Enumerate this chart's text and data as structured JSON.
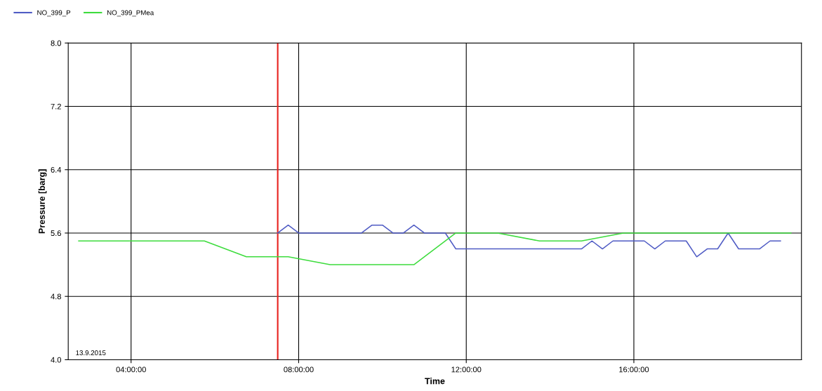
{
  "chart_data": {
    "type": "line",
    "xlabel": "Time",
    "ylabel": "Pressure [barg]",
    "xlim": [
      2.5,
      20
    ],
    "xticks": [
      {
        "value": 4,
        "label": "04:00:00"
      },
      {
        "value": 8,
        "label": "08:00:00"
      },
      {
        "value": 12,
        "label": "12:00:00"
      },
      {
        "value": 16,
        "label": "16:00:00"
      }
    ],
    "ylim": [
      4.0,
      8.0
    ],
    "yticks": [
      {
        "value": 4.0,
        "label": "4.0"
      },
      {
        "value": 4.8,
        "label": "4.8"
      },
      {
        "value": 5.6,
        "label": "5.6"
      },
      {
        "value": 6.4,
        "label": "6.4"
      },
      {
        "value": 7.2,
        "label": "7.2"
      },
      {
        "value": 8.0,
        "label": "8.0"
      }
    ],
    "grid": true,
    "legend": "top left",
    "marker": "none",
    "line_style": "solid",
    "ref_lines": [
      {
        "axis": "x",
        "value": 7.5,
        "label": null,
        "color": "#e8201c"
      }
    ],
    "annotations": [
      "13.9.2015"
    ],
    "series": [
      {
        "name": "NO_399_P",
        "color": "#4f5bc4",
        "x": [
          7.5,
          7.75,
          8.0,
          9.5,
          9.75,
          10.0,
          10.25,
          10.5,
          10.75,
          11.0,
          11.5,
          11.75,
          14.75,
          15.0,
          15.25,
          15.5,
          16.25,
          16.5,
          16.75,
          17.25,
          17.5,
          17.75,
          18.0,
          18.25,
          18.5,
          19.0,
          19.25,
          19.5
        ],
        "values": [
          5.6,
          5.7,
          5.6,
          5.6,
          5.7,
          5.7,
          5.6,
          5.6,
          5.7,
          5.6,
          5.6,
          5.4,
          5.4,
          5.5,
          5.4,
          5.5,
          5.5,
          5.4,
          5.5,
          5.5,
          5.3,
          5.4,
          5.4,
          5.6,
          5.4,
          5.4,
          5.5,
          5.5
        ]
      },
      {
        "name": "NO_399_PMea",
        "color": "#3ddc3d",
        "x": [
          2.75,
          5.75,
          6.75,
          7.75,
          8.75,
          10.75,
          11.75,
          12.75,
          13.75,
          14.75,
          15.75,
          19.75
        ],
        "values": [
          5.5,
          5.5,
          5.3,
          5.3,
          5.2,
          5.2,
          5.6,
          5.6,
          5.5,
          5.5,
          5.6,
          5.6
        ]
      }
    ]
  }
}
